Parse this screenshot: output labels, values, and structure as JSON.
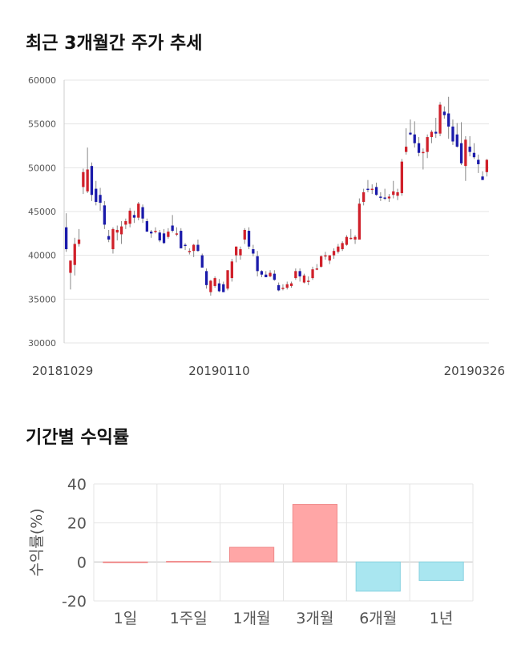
{
  "section1": {
    "title": "최근 3개월간 주가 추세"
  },
  "section2": {
    "title": "기간별 수익률"
  },
  "colors": {
    "up": "#d0202a",
    "down": "#1a1aaa",
    "wick": "#888888",
    "grid": "#e4e4e4",
    "positive_bar": "#ffa6a6",
    "negative_bar": "#a9e6f0"
  },
  "chart_data": [
    {
      "type": "candlestick",
      "title": "최근 3개월간 주가 추세",
      "ylim": [
        30000,
        60000
      ],
      "yticks": [
        30000,
        35000,
        40000,
        45000,
        50000,
        55000,
        60000
      ],
      "xtick_labels": [
        {
          "index": 0,
          "label": "20181029"
        },
        {
          "index": 36,
          "label": "20190110"
        },
        {
          "index": 86,
          "label": "20190326"
        }
      ],
      "grid": true,
      "candles": [
        [
          43200,
          44800,
          40400,
          40700
        ],
        [
          38000,
          39400,
          36100,
          39400
        ],
        [
          38900,
          42000,
          37700,
          41300
        ],
        [
          41300,
          43000,
          41000,
          41800
        ],
        [
          47800,
          49900,
          47000,
          49500
        ],
        [
          47300,
          52300,
          47100,
          49800
        ],
        [
          50200,
          50600,
          46200,
          46900
        ],
        [
          47600,
          48500,
          45700,
          46100
        ],
        [
          46900,
          47700,
          45100,
          46000
        ],
        [
          45700,
          46200,
          43000,
          43500
        ],
        [
          42200,
          42900,
          41500,
          41800
        ],
        [
          40700,
          43200,
          40200,
          43000
        ],
        [
          42600,
          43400,
          41700,
          42900
        ],
        [
          42400,
          43900,
          41300,
          43300
        ],
        [
          43500,
          44200,
          43000,
          43900
        ],
        [
          43600,
          45400,
          43200,
          45100
        ],
        [
          44600,
          45100,
          43700,
          44300
        ],
        [
          44300,
          46100,
          44000,
          45900
        ],
        [
          45500,
          45800,
          43700,
          44200
        ],
        [
          43900,
          44200,
          42700,
          42700
        ],
        [
          42700,
          42900,
          42000,
          42500
        ],
        [
          42700,
          43200,
          42500,
          42800
        ],
        [
          42600,
          42900,
          41500,
          41700
        ],
        [
          42500,
          43000,
          41300,
          41400
        ],
        [
          42100,
          43100,
          41900,
          42700
        ],
        [
          43400,
          44600,
          42600,
          42800
        ],
        [
          42500,
          43200,
          42200,
          42500
        ],
        [
          42800,
          43100,
          40800,
          40800
        ],
        [
          41200,
          41400,
          40600,
          41100
        ],
        [
          40500,
          40800,
          40100,
          40500
        ],
        [
          40500,
          41300,
          39800,
          41200
        ],
        [
          41200,
          41800,
          40400,
          40500
        ],
        [
          40000,
          40200,
          38600,
          38600
        ],
        [
          38200,
          38500,
          36200,
          36600
        ],
        [
          35800,
          37200,
          35400,
          37100
        ],
        [
          36500,
          37600,
          36300,
          37400
        ],
        [
          36800,
          37300,
          35800,
          35900
        ],
        [
          36700,
          37000,
          35800,
          35800
        ],
        [
          36200,
          38300,
          36000,
          38300
        ],
        [
          37400,
          39600,
          37000,
          39300
        ],
        [
          40000,
          41000,
          39200,
          41000
        ],
        [
          40000,
          41000,
          39500,
          40700
        ],
        [
          41800,
          43100,
          41300,
          42900
        ],
        [
          42800,
          43200,
          40700,
          41000
        ],
        [
          40700,
          41200,
          39900,
          40200
        ],
        [
          39900,
          40500,
          37600,
          38200
        ],
        [
          38200,
          38300,
          37500,
          37800
        ],
        [
          37800,
          38200,
          37500,
          37500
        ],
        [
          37600,
          38300,
          37500,
          38000
        ],
        [
          37900,
          38300,
          37100,
          37200
        ],
        [
          36600,
          36900,
          35900,
          36000
        ],
        [
          36300,
          36700,
          36000,
          36300
        ],
        [
          36300,
          37000,
          36100,
          36700
        ],
        [
          36500,
          37000,
          36300,
          36800
        ],
        [
          37400,
          38500,
          37200,
          38200
        ],
        [
          38200,
          38500,
          37000,
          37600
        ],
        [
          36900,
          37900,
          36800,
          37700
        ],
        [
          37000,
          37600,
          36600,
          37100
        ],
        [
          37400,
          38700,
          37200,
          38400
        ],
        [
          38400,
          39000,
          38300,
          38500
        ],
        [
          38700,
          40000,
          38600,
          39900
        ],
        [
          39900,
          40400,
          39500,
          40000
        ],
        [
          39400,
          40000,
          39000,
          40000
        ],
        [
          40000,
          40800,
          39600,
          40500
        ],
        [
          40400,
          41300,
          40200,
          41000
        ],
        [
          40700,
          41600,
          40500,
          41400
        ],
        [
          41200,
          42300,
          41100,
          42100
        ],
        [
          42000,
          43000,
          41800,
          42000
        ],
        [
          41800,
          42300,
          41300,
          42100
        ],
        [
          41800,
          46500,
          41800,
          45900
        ],
        [
          46100,
          47600,
          45700,
          47200
        ],
        [
          47600,
          48600,
          47200,
          47500
        ],
        [
          47500,
          48100,
          47000,
          47600
        ],
        [
          47800,
          48300,
          46800,
          46900
        ],
        [
          46700,
          47200,
          46200,
          46600
        ],
        [
          46600,
          47600,
          46300,
          46500
        ],
        [
          46500,
          47000,
          46100,
          46700
        ],
        [
          46900,
          48500,
          46500,
          47300
        ],
        [
          46800,
          47600,
          46300,
          47200
        ],
        [
          47100,
          51000,
          46800,
          50700
        ],
        [
          51800,
          54500,
          51500,
          52400
        ],
        [
          54000,
          55500,
          53700,
          53800
        ],
        [
          53800,
          55300,
          52300,
          52800
        ],
        [
          52800,
          53500,
          51300,
          51700
        ],
        [
          51700,
          52200,
          49800,
          51800
        ],
        [
          51800,
          53800,
          51100,
          53500
        ],
        [
          53500,
          54300,
          52800,
          54100
        ],
        [
          54100,
          55700,
          53400,
          53900
        ],
        [
          53900,
          57500,
          53600,
          57200
        ],
        [
          56400,
          57000,
          55600,
          56000
        ],
        [
          56200,
          58100,
          53300,
          54700
        ],
        [
          54700,
          55500,
          52600,
          53000
        ],
        [
          53800,
          55100,
          52300,
          52400
        ],
        [
          52800,
          55200,
          50300,
          50500
        ],
        [
          50200,
          53600,
          48500,
          53200
        ],
        [
          52400,
          53600,
          51300,
          51800
        ],
        [
          51700,
          52800,
          51000,
          51200
        ],
        [
          50900,
          51500,
          49400,
          50400
        ],
        [
          49000,
          49600,
          48600,
          48600
        ],
        [
          49500,
          51000,
          49000,
          50900
        ]
      ]
    },
    {
      "type": "bar",
      "title": "기간별 수익률",
      "categories": [
        "1일",
        "1주일",
        "1개월",
        "3개월",
        "6개월",
        "1년"
      ],
      "values": [
        0,
        0.3,
        7.5,
        29.5,
        -15.0,
        -9.5
      ],
      "ylabel": "수익률(%)",
      "ylim": [
        -20,
        40
      ],
      "yticks": [
        -20,
        0,
        20,
        40
      ],
      "grid": true
    }
  ]
}
